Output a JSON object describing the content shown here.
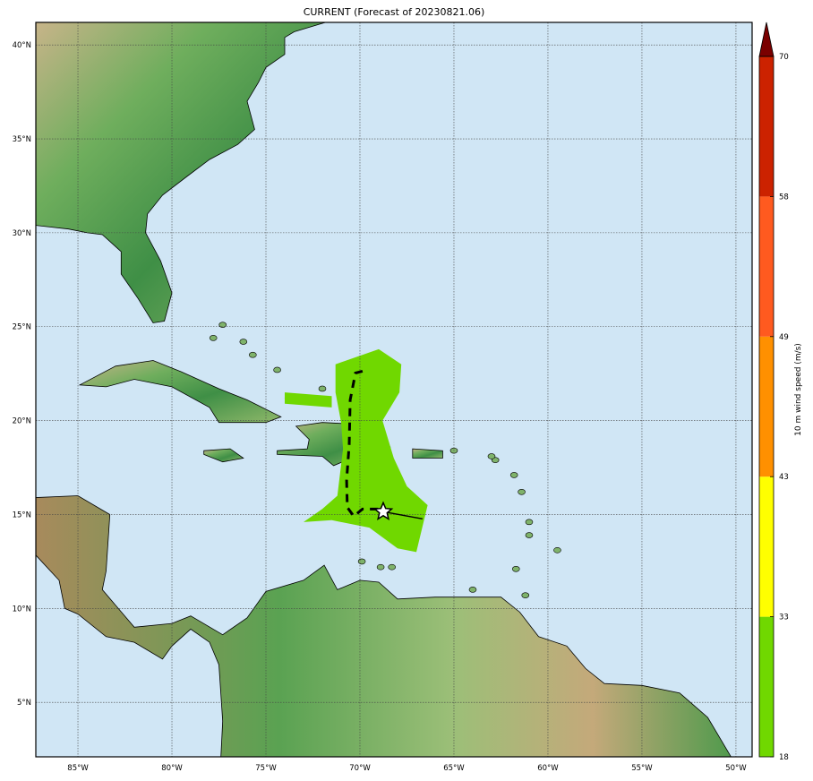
{
  "title": "CURRENT (Forecast of 20230821.06)",
  "map": {
    "lon_range": [
      -87.24,
      -49.14
    ],
    "lat_range": [
      2.1,
      41.2
    ],
    "lon_ticks": [
      -85,
      -80,
      -75,
      -70,
      -65,
      -60,
      -55,
      -50
    ],
    "lon_tick_labels": [
      "85°W",
      "80°W",
      "75°W",
      "70°W",
      "65°W",
      "60°W",
      "55°W",
      "50°W"
    ],
    "lat_ticks": [
      5,
      10,
      15,
      20,
      25,
      30,
      35,
      40
    ],
    "lat_tick_labels": [
      "5°N",
      "10°N",
      "15°N",
      "20°N",
      "25°N",
      "30°N",
      "35°N",
      "40°N"
    ],
    "ocean_color": "#d0e6f5",
    "wind_swath_color": "#70d800",
    "current_position": {
      "lon": -68.76,
      "lat": 15.15,
      "marker": "star"
    },
    "past_track": [
      [
        -68.76,
        15.15
      ],
      [
        -66.67,
        14.77
      ]
    ],
    "forecast_track": [
      [
        -69.86,
        22.63
      ],
      [
        -70.24,
        22.53
      ],
      [
        -70.52,
        21.1
      ],
      [
        -70.57,
        18.72
      ],
      [
        -70.71,
        16.81
      ],
      [
        -70.67,
        15.38
      ],
      [
        -70.33,
        14.91
      ],
      [
        -69.86,
        15.29
      ],
      [
        -69.0,
        15.29
      ],
      [
        -68.76,
        15.15
      ]
    ]
  },
  "colorbar": {
    "label": "10 m wind speed (m/s)",
    "bounds": [
      18,
      33,
      43,
      49,
      58,
      70
    ],
    "tick_labels": [
      "18",
      "33",
      "43",
      "49",
      "58",
      "70"
    ],
    "colors": [
      "#70d800",
      "#ffff00",
      "#ff9000",
      "#ff5a1f",
      "#cc2200"
    ],
    "extend_color": "#7a0000",
    "extend": "max"
  }
}
